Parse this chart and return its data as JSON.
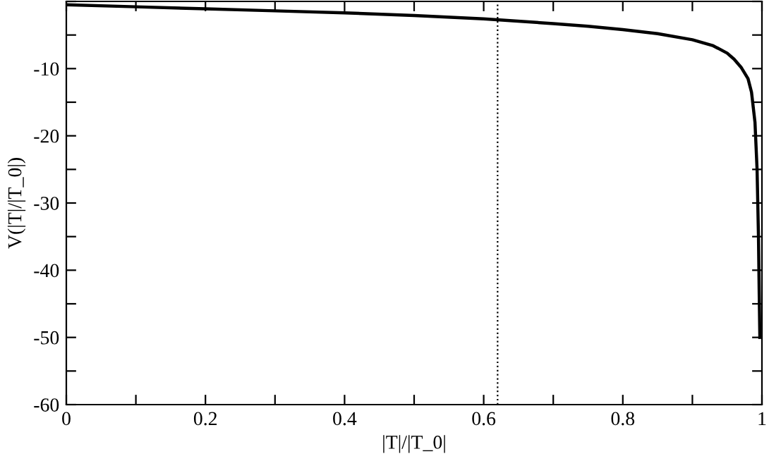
{
  "chart_data": {
    "type": "line",
    "xlabel": "|T|/|T_0|",
    "ylabel": "V(|T|/|T_0|)",
    "x": [
      0,
      0.1,
      0.2,
      0.3,
      0.4,
      0.5,
      0.6,
      0.7,
      0.75,
      0.8,
      0.85,
      0.9,
      0.93,
      0.95,
      0.96,
      0.97,
      0.98,
      0.985,
      0.99,
      0.993,
      0.995,
      0.996,
      0.997
    ],
    "series": [
      {
        "color": "#000000",
        "values": [
          -0.5,
          -0.8,
          -1.1,
          -1.4,
          -1.7,
          -2.1,
          -2.6,
          -3.3,
          -3.7,
          -4.2,
          -4.8,
          -5.7,
          -6.6,
          -7.7,
          -8.6,
          -9.8,
          -11.5,
          -13.5,
          -18,
          -25,
          -35,
          -43,
          -50
        ]
      }
    ],
    "xlim": [
      0,
      1
    ],
    "ylim": [
      -60,
      0
    ],
    "xticks": [
      0,
      {
        "value": 0.1,
        "label": null
      },
      {
        "value": 0.2,
        "label": "0.2"
      },
      {
        "value": 0.3,
        "label": null
      },
      {
        "value": 0.4,
        "label": "0.4"
      },
      {
        "value": 0.5,
        "label": null
      },
      {
        "value": 0.6,
        "label": "0.6"
      },
      {
        "value": 0.7,
        "label": null
      },
      {
        "value": 0.8,
        "label": "0.8"
      },
      {
        "value": 0.9,
        "label": null
      },
      1
    ],
    "yticks": [
      -60,
      {
        "value": -55,
        "label": null
      },
      -50,
      {
        "value": -45,
        "label": null
      },
      -40,
      {
        "value": -35,
        "label": null
      },
      -30,
      {
        "value": -25,
        "label": null
      },
      -20,
      {
        "value": -15,
        "label": null
      },
      -10,
      {
        "value": -5,
        "label": null
      },
      {
        "value": 0,
        "label": null
      }
    ],
    "ref_lines": [
      {
        "axis": "x",
        "value": 0.62,
        "color": "#000000",
        "line_style": "dotted"
      }
    ],
    "grid": false,
    "legend": false,
    "marker": "none",
    "line_style": "solid"
  }
}
